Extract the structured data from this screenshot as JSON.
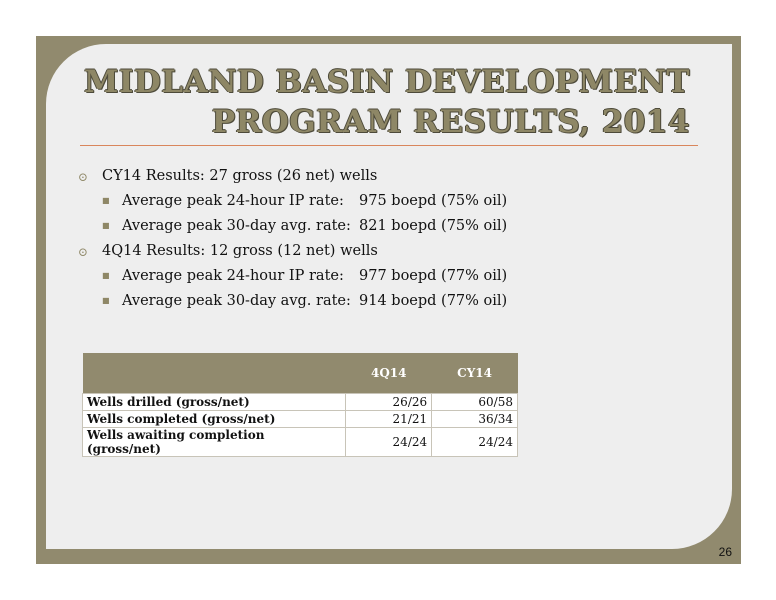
{
  "slide": {
    "title_line1": "MIDLAND BASIN DEVELOPMENT",
    "title_line2": "PROGRAM RESULTS, 2014",
    "page_number": "26"
  },
  "bullets": [
    {
      "text": "CY14 Results: 27 gross (26 net) wells",
      "subs": [
        {
          "label": "Average peak 24-hour IP rate:",
          "value": "975 boepd (75% oil)"
        },
        {
          "label": "Average peak 30-day avg. rate:",
          "value": "821 boepd (75% oil)"
        }
      ]
    },
    {
      "text": "4Q14 Results: 12 gross (12 net) wells",
      "subs": [
        {
          "label": "Average peak 24-hour IP rate:",
          "value": "977 boepd (77% oil)"
        },
        {
          "label": "Average peak 30-day avg. rate:",
          "value": "914 boepd (77% oil)"
        }
      ]
    }
  ],
  "table": {
    "headers": [
      "",
      "4Q14",
      "CY14"
    ],
    "rows": [
      [
        "Wells drilled (gross/net)",
        "26/26",
        "60/58"
      ],
      [
        "Wells completed (gross/net)",
        "21/21",
        "36/34"
      ],
      [
        "Wells awaiting completion (gross/net)",
        "24/24",
        "24/24"
      ]
    ]
  },
  "colors": {
    "frame": "#918A6E",
    "background": "#EEEEEE",
    "rule": "#D9865C"
  },
  "icons": {
    "level1_bullet": "circled-dot-icon",
    "level2_bullet": "small-square-icon"
  }
}
